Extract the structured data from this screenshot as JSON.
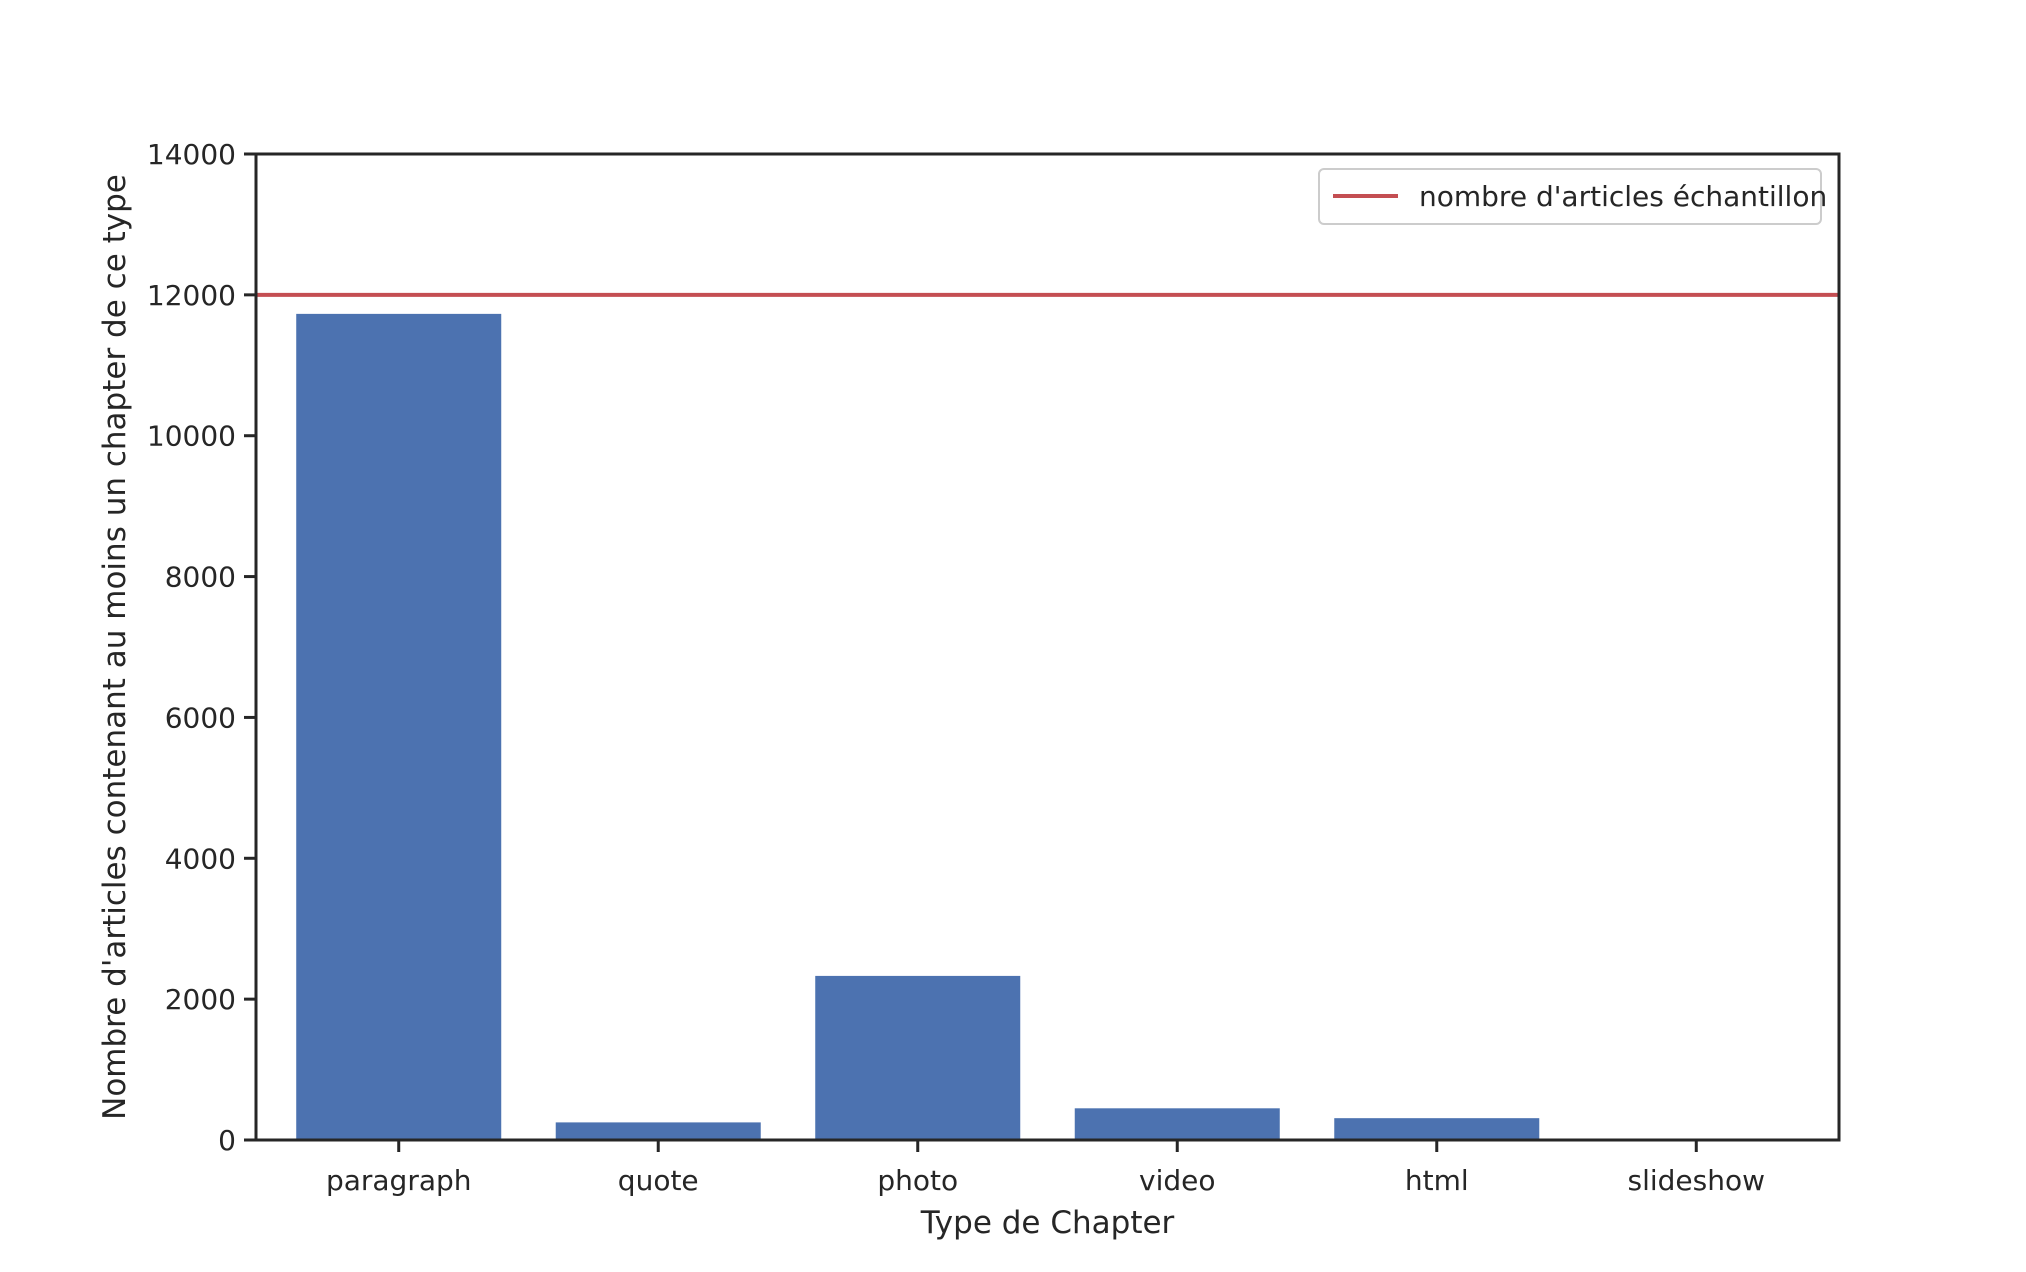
{
  "chart_data": {
    "type": "bar",
    "xlabel": "Type de Chapter",
    "ylabel": "Nombre d'articles contenant au moins un chapter de ce type",
    "categories": [
      "paragraph",
      "quote",
      "photo",
      "video",
      "html",
      "slideshow"
    ],
    "values": [
      11730,
      250,
      2330,
      450,
      310,
      20
    ],
    "ylim": [
      0,
      14000
    ],
    "yticks": [
      0,
      2000,
      4000,
      6000,
      8000,
      10000,
      12000,
      14000
    ],
    "reference_line": {
      "label": "nombre d'articles échantillon",
      "value": 12000,
      "color": "#c44e52"
    },
    "bar_color": "#4c72b0",
    "legend_position": "top-right",
    "grid": false
  }
}
